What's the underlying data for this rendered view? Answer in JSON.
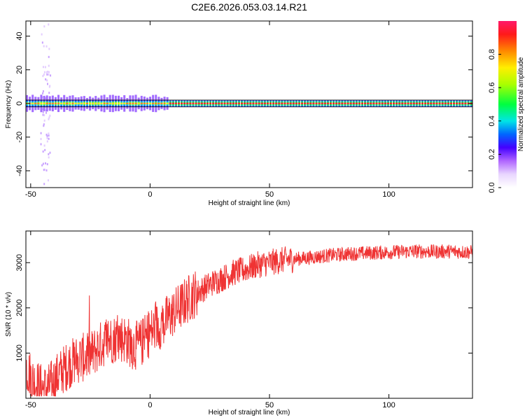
{
  "chart_data": [
    {
      "type": "heatmap",
      "title": "C2E6.2026.053.03.14.R21",
      "xlabel": "Height of straight line (km)",
      "ylabel": "Frequency (Hz)",
      "xlim": [
        -52,
        135
      ],
      "ylim": [
        -50,
        49
      ],
      "xticks": [
        "-50",
        "0",
        "50",
        "100"
      ],
      "yticks": [
        "-40",
        "-20",
        "0",
        "20",
        "40"
      ],
      "colorbar": {
        "label": "Normalized spectral amplitude",
        "range": [
          0,
          1
        ],
        "ticks": [
          "0.0",
          "0.2",
          "0.4",
          "0.6",
          "0.8"
        ]
      },
      "ridge": {
        "frequency_hz": 0,
        "bandwidth_hz": [
          -2,
          2
        ],
        "x_range": [
          -52,
          135
        ]
      }
    },
    {
      "type": "line",
      "title": "",
      "xlabel": "Height of straight line (km)",
      "ylabel": "SNR (10 * v/v)",
      "xlim": [
        -52,
        135
      ],
      "ylim": [
        0,
        3700
      ],
      "xticks": [
        "-50",
        "0",
        "50",
        "100"
      ],
      "yticks": [
        "1000",
        "2000",
        "3000"
      ],
      "series": [
        {
          "color": "#ef3333",
          "x": [
            -52,
            -49,
            -46,
            -43,
            -40,
            -37,
            -34,
            -31,
            -28,
            -25,
            -22,
            -19,
            -16,
            -13,
            -10,
            -7,
            -4,
            -1,
            2,
            5,
            8,
            11,
            14,
            17,
            20,
            23,
            26,
            29,
            32,
            35,
            40,
            45,
            50,
            55,
            60,
            65,
            70,
            75,
            80,
            85,
            90,
            95,
            100,
            105,
            110,
            115,
            120,
            125,
            130,
            135
          ],
          "y": [
            700,
            400,
            250,
            200,
            400,
            600,
            750,
            850,
            900,
            950,
            1100,
            1250,
            1300,
            1350,
            1300,
            1150,
            1200,
            1400,
            1550,
            1650,
            1800,
            1950,
            2100,
            2250,
            2350,
            2450,
            2550,
            2620,
            2700,
            2780,
            2850,
            2950,
            3000,
            3050,
            3080,
            3100,
            3130,
            3160,
            3180,
            3200,
            3210,
            3220,
            3230,
            3240,
            3250,
            3250,
            3240,
            3250,
            3240,
            3230
          ]
        }
      ]
    }
  ]
}
